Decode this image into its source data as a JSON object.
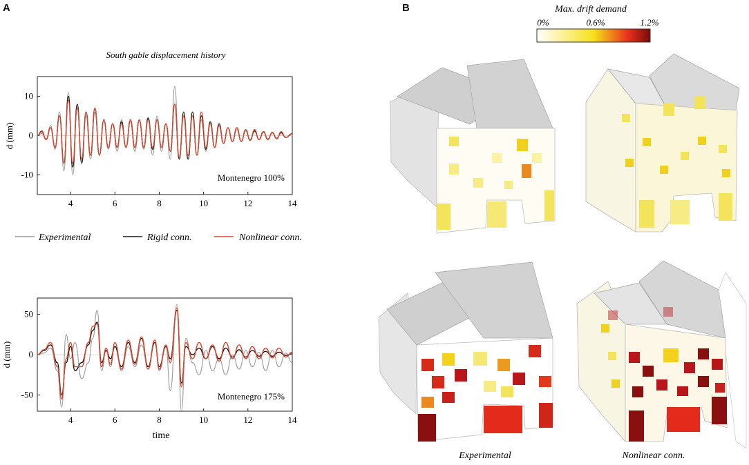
{
  "panels": {
    "a_label": "A",
    "b_label": "B"
  },
  "colors": {
    "experimental": "#9a9a9a",
    "rigid": "#1a1a1a",
    "nonlinear": "#e0452a",
    "axis": "#222222",
    "roof": "#cfcfcf",
    "wall_base": "#fbf8ea",
    "gradient_low": "#ffffff",
    "gradient_mid": "#f7e11c",
    "gradient_high": "#e8321c",
    "gradient_max": "#7a0a0a"
  },
  "chart_data": [
    {
      "type": "line",
      "title": "South gable displacement history",
      "annotation": "Montenegro 100%",
      "xlabel": "",
      "ylabel": "d (mm)",
      "xlim": [
        2.5,
        14
      ],
      "ylim": [
        -15,
        15
      ],
      "xticks": [
        4,
        6,
        8,
        10,
        12,
        14
      ],
      "yticks": [
        10,
        0,
        -10
      ],
      "series": [
        {
          "name": "Experimental",
          "x": [
            2.5,
            2.7,
            2.9,
            3.1,
            3.3,
            3.5,
            3.7,
            3.9,
            4.1,
            4.3,
            4.5,
            4.7,
            4.9,
            5.1,
            5.3,
            5.5,
            5.7,
            5.9,
            6.1,
            6.3,
            6.5,
            6.7,
            6.9,
            7.1,
            7.3,
            7.5,
            7.7,
            7.9,
            8.1,
            8.3,
            8.5,
            8.7,
            8.9,
            9.1,
            9.3,
            9.5,
            9.7,
            9.9,
            10.1,
            10.3,
            10.5,
            10.7,
            10.9,
            11.1,
            11.3,
            11.5,
            11.7,
            11.9,
            12.1,
            12.3,
            12.5,
            12.7,
            12.9,
            13.1,
            13.3,
            13.5,
            13.7,
            14.0
          ],
          "y": [
            0,
            0.5,
            -0.8,
            2.5,
            -3.5,
            6,
            -9,
            11,
            -10,
            7,
            -7,
            5,
            -6,
            6,
            -5,
            4,
            -3.5,
            3,
            -4,
            4,
            -3,
            3.5,
            -4,
            4,
            -3.5,
            4,
            -5,
            5,
            -4,
            3,
            -6,
            12.5,
            -6,
            5,
            -6,
            5,
            -5,
            4,
            -4,
            3,
            -3,
            2.5,
            -2,
            2,
            -1.5,
            1.5,
            -1.5,
            1.2,
            -1,
            1,
            -1,
            0.8,
            -0.8,
            0.6,
            -0.6,
            0.5,
            -0.4,
            0.2
          ]
        },
        {
          "name": "Rigid conn.",
          "x": [
            2.5,
            2.7,
            2.9,
            3.1,
            3.3,
            3.5,
            3.7,
            3.9,
            4.1,
            4.3,
            4.5,
            4.7,
            4.9,
            5.1,
            5.3,
            5.5,
            5.7,
            5.9,
            6.1,
            6.3,
            6.5,
            6.7,
            6.9,
            7.1,
            7.3,
            7.5,
            7.7,
            7.9,
            8.1,
            8.3,
            8.5,
            8.7,
            8.9,
            9.1,
            9.3,
            9.5,
            9.7,
            9.9,
            10.1,
            10.3,
            10.5,
            10.7,
            10.9,
            11.1,
            11.3,
            11.5,
            11.7,
            11.9,
            12.1,
            12.3,
            12.5,
            12.7,
            12.9,
            13.1,
            13.3,
            13.5,
            13.7,
            14.0
          ],
          "y": [
            0,
            1,
            -1,
            2,
            -3,
            5,
            -7,
            10,
            -8,
            8,
            -7,
            6,
            -5,
            7,
            -5,
            4,
            -3,
            3,
            -3,
            3.5,
            -3,
            4,
            -3,
            4,
            -3,
            4.5,
            -3.5,
            4,
            -3,
            3,
            -4,
            8,
            -6,
            6,
            -6,
            6,
            -5,
            5,
            -3.5,
            3.5,
            -3,
            3,
            -2,
            2,
            -1.5,
            2,
            -1.5,
            1.5,
            -1.2,
            1.2,
            -1,
            1,
            -1,
            0.8,
            -0.8,
            0.8,
            -0.5,
            0.5
          ]
        },
        {
          "name": "Nonlinear conn.",
          "x": [
            2.5,
            2.7,
            2.9,
            3.1,
            3.3,
            3.5,
            3.7,
            3.9,
            4.1,
            4.3,
            4.5,
            4.7,
            4.9,
            5.1,
            5.3,
            5.5,
            5.7,
            5.9,
            6.1,
            6.3,
            6.5,
            6.7,
            6.9,
            7.1,
            7.3,
            7.5,
            7.7,
            7.9,
            8.1,
            8.3,
            8.5,
            8.7,
            8.9,
            9.1,
            9.3,
            9.5,
            9.7,
            9.9,
            10.1,
            10.3,
            10.5,
            10.7,
            10.9,
            11.1,
            11.3,
            11.5,
            11.7,
            11.9,
            12.1,
            12.3,
            12.5,
            12.7,
            12.9,
            13.1,
            13.3,
            13.5,
            13.7,
            14.0
          ],
          "y": [
            0,
            1.2,
            -1,
            2,
            -3,
            5,
            -7,
            9,
            -7,
            7,
            -6,
            6,
            -5,
            7,
            -5,
            4,
            -3,
            3,
            -3,
            3,
            -3,
            4,
            -3,
            4,
            -3,
            4,
            -3,
            4,
            -3,
            3,
            -4,
            8,
            -5.5,
            5,
            -5,
            5,
            -5,
            6,
            -3,
            3,
            -3,
            2.5,
            -2,
            2,
            -1.5,
            2,
            -1.5,
            1.5,
            -1.2,
            1.5,
            -1,
            1,
            -1,
            0.8,
            -0.8,
            1,
            -0.5,
            0.5
          ]
        }
      ]
    },
    {
      "type": "line",
      "title": "",
      "annotation": "Montenegro 175%",
      "xlabel": "time",
      "ylabel": "d (mm)",
      "xlim": [
        2.5,
        14
      ],
      "ylim": [
        -70,
        70
      ],
      "xticks": [
        4,
        6,
        8,
        10,
        12,
        14
      ],
      "yticks": [
        50,
        0,
        -50
      ],
      "series": [
        {
          "name": "Experimental",
          "x": [
            2.5,
            2.8,
            3.1,
            3.4,
            3.6,
            3.8,
            4.0,
            4.2,
            4.5,
            4.8,
            5.0,
            5.2,
            5.4,
            5.6,
            5.8,
            6.0,
            6.3,
            6.6,
            6.9,
            7.2,
            7.5,
            7.8,
            8.0,
            8.3,
            8.5,
            8.8,
            9.0,
            9.2,
            9.5,
            9.8,
            10.1,
            10.4,
            10.7,
            11.0,
            11.3,
            11.6,
            11.9,
            12.2,
            12.5,
            12.8,
            13.1,
            13.4,
            13.7,
            14.0
          ],
          "y": [
            0,
            2,
            8,
            -20,
            -65,
            25,
            -5,
            15,
            -30,
            -10,
            20,
            55,
            -20,
            5,
            -15,
            10,
            -20,
            10,
            -15,
            12,
            -15,
            18,
            -20,
            10,
            -45,
            62,
            -70,
            20,
            -10,
            -25,
            5,
            -20,
            -5,
            -25,
            0,
            -18,
            5,
            -15,
            3,
            -20,
            5,
            -15,
            2,
            -10
          ]
        },
        {
          "name": "Rigid conn.",
          "x": [
            2.5,
            2.8,
            3.1,
            3.4,
            3.6,
            3.8,
            4.0,
            4.2,
            4.5,
            4.8,
            5.0,
            5.2,
            5.4,
            5.6,
            5.8,
            6.0,
            6.3,
            6.6,
            6.9,
            7.2,
            7.5,
            7.8,
            8.0,
            8.3,
            8.5,
            8.8,
            9.0,
            9.2,
            9.5,
            9.8,
            10.1,
            10.4,
            10.7,
            11.0,
            11.3,
            11.6,
            11.9,
            12.2,
            12.5,
            12.8,
            13.1,
            13.4,
            13.7,
            14.0
          ],
          "y": [
            0,
            5,
            12,
            -10,
            -50,
            -10,
            10,
            -20,
            -10,
            12,
            30,
            40,
            -10,
            5,
            -5,
            10,
            -15,
            15,
            -10,
            20,
            -15,
            15,
            -15,
            10,
            -5,
            55,
            -35,
            10,
            0,
            8,
            -5,
            10,
            -5,
            8,
            -3,
            6,
            -3,
            5,
            -2,
            4,
            -2,
            3,
            -1,
            1
          ]
        },
        {
          "name": "Nonlinear conn.",
          "x": [
            2.5,
            2.8,
            3.1,
            3.4,
            3.6,
            3.8,
            4.0,
            4.2,
            4.5,
            4.8,
            5.0,
            5.2,
            5.4,
            5.6,
            5.8,
            6.0,
            6.3,
            6.6,
            6.9,
            7.2,
            7.5,
            7.8,
            8.0,
            8.3,
            8.5,
            8.8,
            9.0,
            9.2,
            9.5,
            9.8,
            10.1,
            10.4,
            10.7,
            11.0,
            11.3,
            11.6,
            11.9,
            12.2,
            12.5,
            12.8,
            13.1,
            13.4,
            13.7,
            14.0
          ],
          "y": [
            0,
            6,
            15,
            -15,
            -55,
            -5,
            15,
            -15,
            -15,
            15,
            35,
            38,
            -15,
            8,
            -12,
            15,
            -18,
            18,
            -12,
            22,
            -18,
            18,
            -18,
            12,
            -10,
            58,
            -40,
            15,
            -5,
            15,
            -5,
            12,
            -8,
            15,
            -5,
            12,
            -5,
            10,
            -5,
            8,
            -4,
            8,
            -3,
            3
          ]
        }
      ]
    }
  ],
  "legend": {
    "items": [
      "Experimental",
      "Rigid conn.",
      "Nonlinear conn."
    ]
  },
  "colorbar": {
    "title": "Max. drift demand",
    "ticks": [
      "0%",
      "0.6%",
      "1.2%"
    ]
  },
  "models": {
    "captions": [
      "Experimental",
      "Nonlinear conn."
    ]
  }
}
